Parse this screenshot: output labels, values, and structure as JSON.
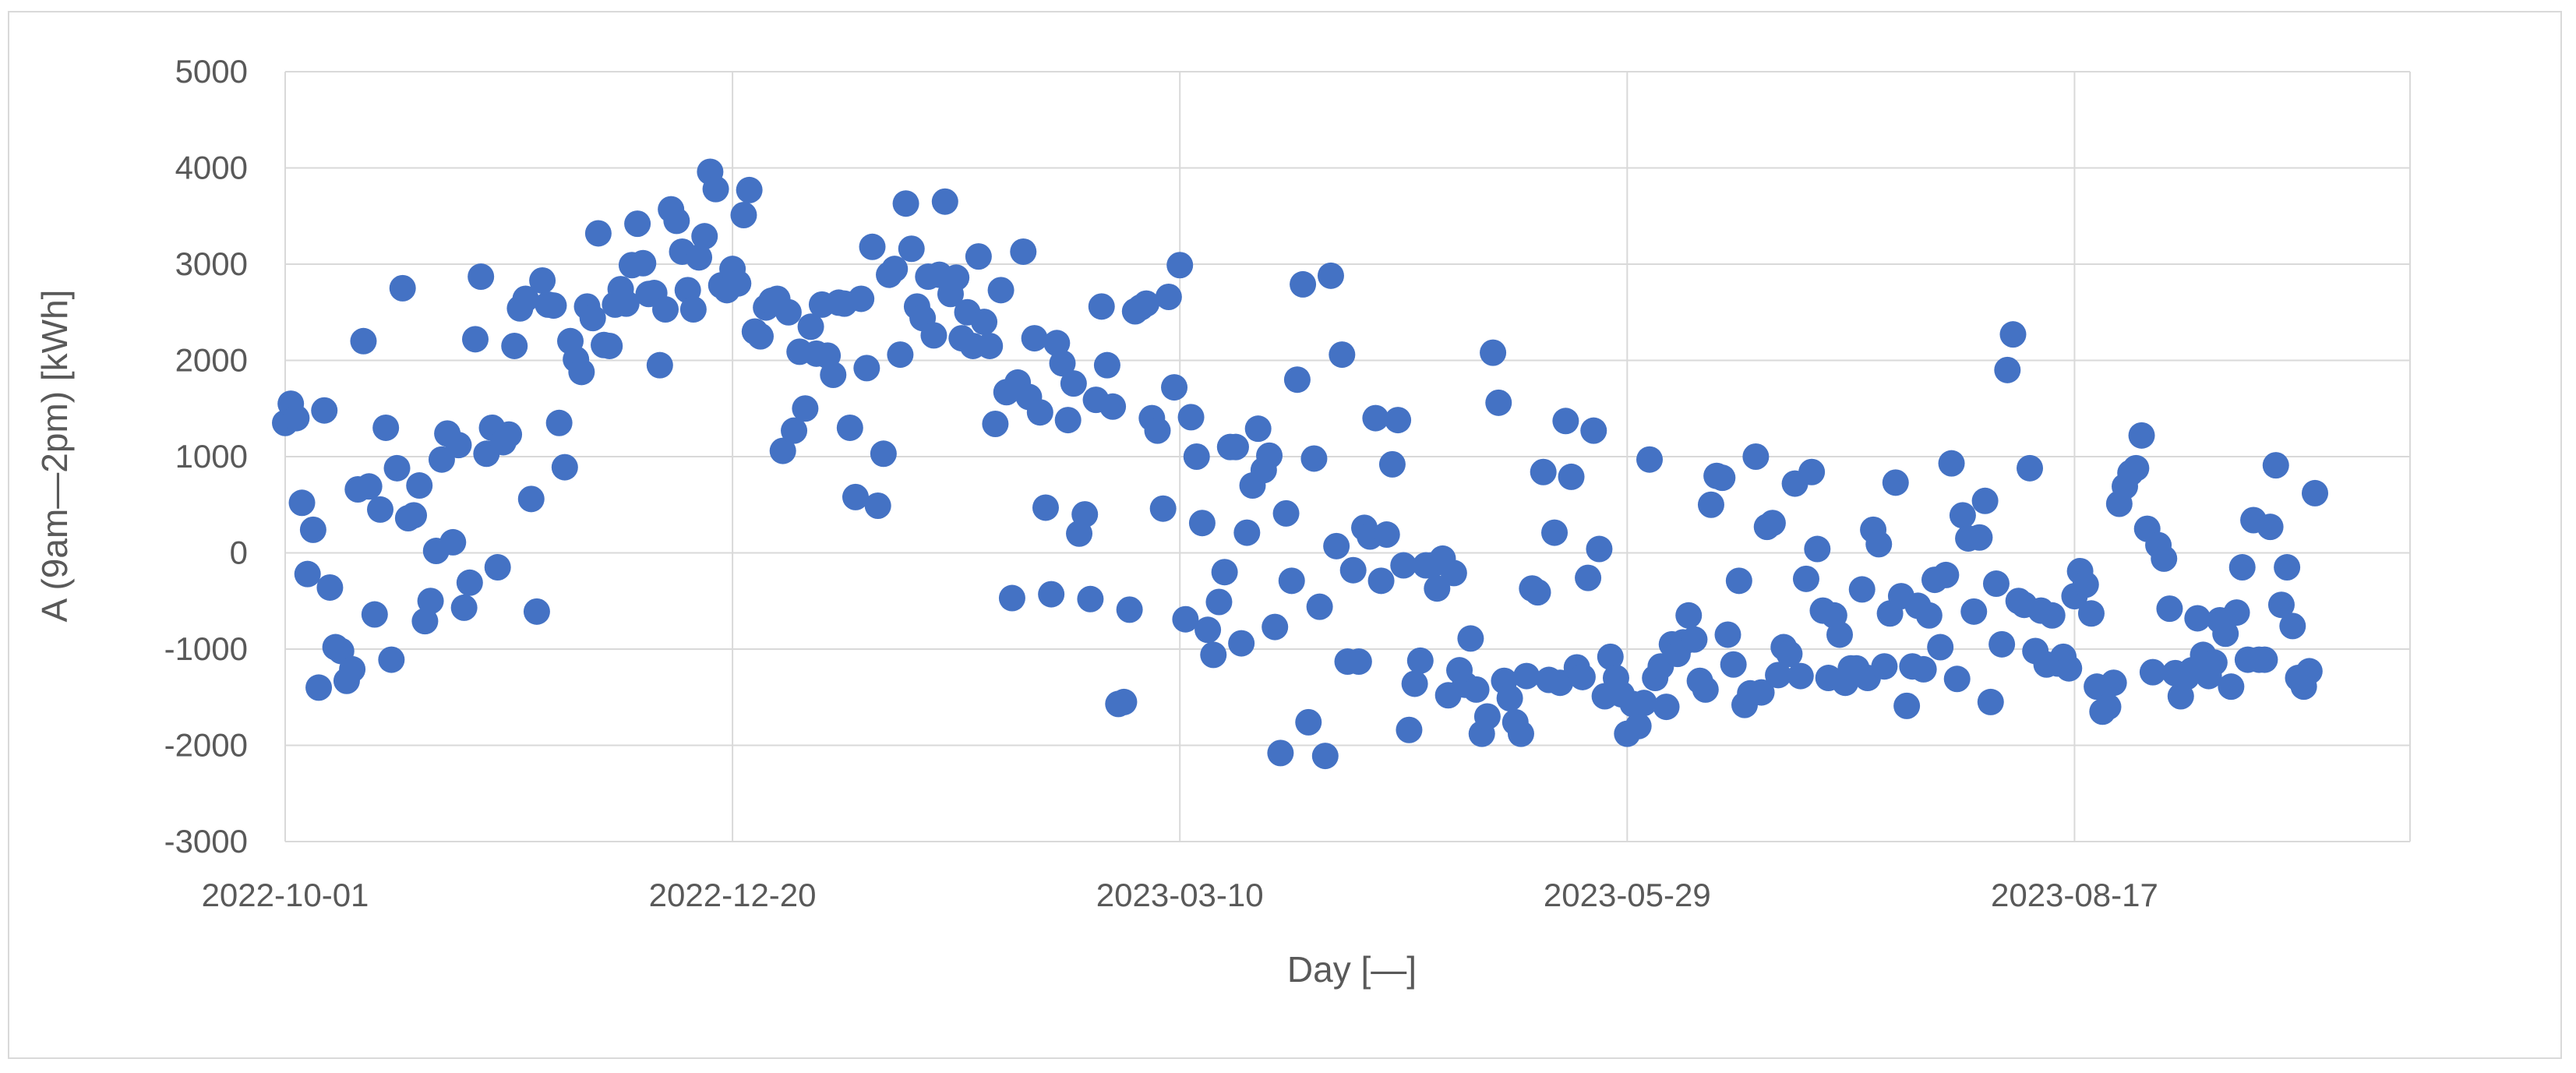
{
  "chart_data": {
    "type": "scatter",
    "xlabel": "Day [—]",
    "ylabel": "A (9am—2pm) [kWh]",
    "x_is_date": true,
    "xlim": [
      "2022-10-01",
      "2023-10-16"
    ],
    "ylim": [
      -3000,
      5000
    ],
    "y_ticks": [
      -3000,
      -2000,
      -1000,
      0,
      1000,
      2000,
      3000,
      4000,
      5000
    ],
    "x_ticks": [
      "2022-10-01",
      "2022-12-20",
      "2023-03-10",
      "2023-05-29",
      "2023-08-17"
    ],
    "grid": true,
    "legend": "none",
    "marker_color": "#4472c4",
    "points": [
      [
        "2022-10-01",
        1350
      ],
      [
        "2022-10-02",
        1550
      ],
      [
        "2022-10-03",
        1400
      ],
      [
        "2022-10-04",
        520
      ],
      [
        "2022-10-05",
        -220
      ],
      [
        "2022-10-06",
        240
      ],
      [
        "2022-10-07",
        -1400
      ],
      [
        "2022-10-08",
        1480
      ],
      [
        "2022-10-09",
        -360
      ],
      [
        "2022-10-10",
        -980
      ],
      [
        "2022-10-11",
        -1020
      ],
      [
        "2022-10-12",
        -1330
      ],
      [
        "2022-10-13",
        -1210
      ],
      [
        "2022-10-14",
        660
      ],
      [
        "2022-10-15",
        2200
      ],
      [
        "2022-10-16",
        690
      ],
      [
        "2022-10-17",
        -640
      ],
      [
        "2022-10-18",
        450
      ],
      [
        "2022-10-19",
        1300
      ],
      [
        "2022-10-20",
        -1110
      ],
      [
        "2022-10-21",
        880
      ],
      [
        "2022-10-22",
        2750
      ],
      [
        "2022-10-23",
        360
      ],
      [
        "2022-10-24",
        390
      ],
      [
        "2022-10-25",
        700
      ],
      [
        "2022-10-26",
        -710
      ],
      [
        "2022-10-27",
        -500
      ],
      [
        "2022-10-28",
        20
      ],
      [
        "2022-10-29",
        970
      ],
      [
        "2022-10-30",
        1240
      ],
      [
        "2022-10-31",
        110
      ],
      [
        "2022-11-01",
        1120
      ],
      [
        "2022-11-02",
        -570
      ],
      [
        "2022-11-03",
        -310
      ],
      [
        "2022-11-04",
        2220
      ],
      [
        "2022-11-05",
        2870
      ],
      [
        "2022-11-06",
        1030
      ],
      [
        "2022-11-07",
        1300
      ],
      [
        "2022-11-08",
        -150
      ],
      [
        "2022-11-09",
        1150
      ],
      [
        "2022-11-10",
        1230
      ],
      [
        "2022-11-11",
        2150
      ],
      [
        "2022-11-12",
        2540
      ],
      [
        "2022-11-13",
        2640
      ],
      [
        "2022-11-14",
        560
      ],
      [
        "2022-11-15",
        -610
      ],
      [
        "2022-11-16",
        2830
      ],
      [
        "2022-11-17",
        2580
      ],
      [
        "2022-11-18",
        2570
      ],
      [
        "2022-11-19",
        1350
      ],
      [
        "2022-11-20",
        890
      ],
      [
        "2022-11-21",
        2200
      ],
      [
        "2022-11-22",
        2010
      ],
      [
        "2022-11-23",
        1880
      ],
      [
        "2022-11-24",
        2560
      ],
      [
        "2022-11-25",
        2440
      ],
      [
        "2022-11-26",
        3320
      ],
      [
        "2022-11-27",
        2160
      ],
      [
        "2022-11-28",
        2150
      ],
      [
        "2022-11-29",
        2580
      ],
      [
        "2022-11-30",
        2740
      ],
      [
        "2022-12-01",
        2590
      ],
      [
        "2022-12-02",
        2990
      ],
      [
        "2022-12-03",
        3420
      ],
      [
        "2022-12-04",
        3010
      ],
      [
        "2022-12-05",
        2690
      ],
      [
        "2022-12-06",
        2700
      ],
      [
        "2022-12-07",
        1950
      ],
      [
        "2022-12-08",
        2530
      ],
      [
        "2022-12-09",
        3570
      ],
      [
        "2022-12-10",
        3450
      ],
      [
        "2022-12-11",
        3130
      ],
      [
        "2022-12-12",
        2730
      ],
      [
        "2022-12-13",
        2530
      ],
      [
        "2022-12-14",
        3070
      ],
      [
        "2022-12-15",
        3290
      ],
      [
        "2022-12-16",
        3960
      ],
      [
        "2022-12-17",
        3780
      ],
      [
        "2022-12-18",
        2780
      ],
      [
        "2022-12-19",
        2730
      ],
      [
        "2022-12-20",
        2950
      ],
      [
        "2022-12-21",
        2800
      ],
      [
        "2022-12-22",
        3510
      ],
      [
        "2022-12-23",
        3770
      ],
      [
        "2022-12-24",
        2300
      ],
      [
        "2022-12-25",
        2250
      ],
      [
        "2022-12-26",
        2550
      ],
      [
        "2022-12-27",
        2620
      ],
      [
        "2022-12-28",
        2640
      ],
      [
        "2022-12-29",
        1060
      ],
      [
        "2022-12-30",
        2500
      ],
      [
        "2022-12-31",
        1270
      ],
      [
        "2023-01-01",
        2090
      ],
      [
        "2023-01-02",
        1500
      ],
      [
        "2023-01-03",
        2350
      ],
      [
        "2023-01-04",
        2070
      ],
      [
        "2023-01-05",
        2580
      ],
      [
        "2023-01-06",
        2050
      ],
      [
        "2023-01-07",
        1850
      ],
      [
        "2023-01-08",
        2600
      ],
      [
        "2023-01-09",
        2590
      ],
      [
        "2023-01-10",
        1300
      ],
      [
        "2023-01-11",
        580
      ],
      [
        "2023-01-12",
        2640
      ],
      [
        "2023-01-13",
        1920
      ],
      [
        "2023-01-14",
        3180
      ],
      [
        "2023-01-15",
        490
      ],
      [
        "2023-01-16",
        1030
      ],
      [
        "2023-01-17",
        2890
      ],
      [
        "2023-01-18",
        2950
      ],
      [
        "2023-01-19",
        2060
      ],
      [
        "2023-01-20",
        3630
      ],
      [
        "2023-01-21",
        3160
      ],
      [
        "2023-01-22",
        2560
      ],
      [
        "2023-01-23",
        2440
      ],
      [
        "2023-01-24",
        2870
      ],
      [
        "2023-01-25",
        2260
      ],
      [
        "2023-01-26",
        2890
      ],
      [
        "2023-01-27",
        3650
      ],
      [
        "2023-01-28",
        2690
      ],
      [
        "2023-01-29",
        2860
      ],
      [
        "2023-01-30",
        2230
      ],
      [
        "2023-01-31",
        2500
      ],
      [
        "2023-02-01",
        2150
      ],
      [
        "2023-02-02",
        3080
      ],
      [
        "2023-02-03",
        2400
      ],
      [
        "2023-02-04",
        2150
      ],
      [
        "2023-02-05",
        1340
      ],
      [
        "2023-02-06",
        2730
      ],
      [
        "2023-02-07",
        1670
      ],
      [
        "2023-02-08",
        -470
      ],
      [
        "2023-02-09",
        1770
      ],
      [
        "2023-02-10",
        3130
      ],
      [
        "2023-02-11",
        1620
      ],
      [
        "2023-02-12",
        2230
      ],
      [
        "2023-02-13",
        1460
      ],
      [
        "2023-02-14",
        470
      ],
      [
        "2023-02-15",
        -430
      ],
      [
        "2023-02-16",
        2180
      ],
      [
        "2023-02-17",
        1970
      ],
      [
        "2023-02-18",
        1380
      ],
      [
        "2023-02-19",
        1760
      ],
      [
        "2023-02-20",
        200
      ],
      [
        "2023-02-21",
        400
      ],
      [
        "2023-02-22",
        -480
      ],
      [
        "2023-02-23",
        1590
      ],
      [
        "2023-02-24",
        2560
      ],
      [
        "2023-02-25",
        1950
      ],
      [
        "2023-02-26",
        1520
      ],
      [
        "2023-02-27",
        -1570
      ],
      [
        "2023-02-28",
        -1550
      ],
      [
        "2023-03-01",
        -590
      ],
      [
        "2023-03-02",
        2510
      ],
      [
        "2023-03-03",
        2550
      ],
      [
        "2023-03-04",
        2590
      ],
      [
        "2023-03-05",
        1400
      ],
      [
        "2023-03-06",
        1270
      ],
      [
        "2023-03-07",
        460
      ],
      [
        "2023-03-08",
        2660
      ],
      [
        "2023-03-09",
        1720
      ],
      [
        "2023-03-10",
        2990
      ],
      [
        "2023-03-11",
        -690
      ],
      [
        "2023-03-12",
        1410
      ],
      [
        "2023-03-13",
        1000
      ],
      [
        "2023-03-14",
        310
      ],
      [
        "2023-03-15",
        -800
      ],
      [
        "2023-03-16",
        -1060
      ],
      [
        "2023-03-17",
        -510
      ],
      [
        "2023-03-18",
        -200
      ],
      [
        "2023-03-19",
        1100
      ],
      [
        "2023-03-20",
        1100
      ],
      [
        "2023-03-21",
        -940
      ],
      [
        "2023-03-22",
        210
      ],
      [
        "2023-03-23",
        700
      ],
      [
        "2023-03-24",
        1290
      ],
      [
        "2023-03-25",
        860
      ],
      [
        "2023-03-26",
        1010
      ],
      [
        "2023-03-27",
        -770
      ],
      [
        "2023-03-28",
        -2080
      ],
      [
        "2023-03-29",
        410
      ],
      [
        "2023-03-30",
        -290
      ],
      [
        "2023-03-31",
        1800
      ],
      [
        "2023-04-01",
        2790
      ],
      [
        "2023-04-02",
        -1760
      ],
      [
        "2023-04-03",
        980
      ],
      [
        "2023-04-04",
        -560
      ],
      [
        "2023-04-05",
        -2110
      ],
      [
        "2023-04-06",
        2880
      ],
      [
        "2023-04-07",
        70
      ],
      [
        "2023-04-08",
        2060
      ],
      [
        "2023-04-09",
        -1130
      ],
      [
        "2023-04-10",
        -180
      ],
      [
        "2023-04-11",
        -1130
      ],
      [
        "2023-04-12",
        260
      ],
      [
        "2023-04-13",
        170
      ],
      [
        "2023-04-14",
        1400
      ],
      [
        "2023-04-15",
        -290
      ],
      [
        "2023-04-16",
        190
      ],
      [
        "2023-04-17",
        920
      ],
      [
        "2023-04-18",
        1380
      ],
      [
        "2023-04-19",
        -130
      ],
      [
        "2023-04-20",
        -1840
      ],
      [
        "2023-04-21",
        -1360
      ],
      [
        "2023-04-22",
        -1120
      ],
      [
        "2023-04-23",
        -130
      ],
      [
        "2023-04-24",
        -130
      ],
      [
        "2023-04-25",
        -370
      ],
      [
        "2023-04-26",
        -60
      ],
      [
        "2023-04-27",
        -1480
      ],
      [
        "2023-04-28",
        -210
      ],
      [
        "2023-04-29",
        -1220
      ],
      [
        "2023-04-30",
        -1370
      ],
      [
        "2023-05-01",
        -890
      ],
      [
        "2023-05-02",
        -1420
      ],
      [
        "2023-05-03",
        -1880
      ],
      [
        "2023-05-04",
        -1700
      ],
      [
        "2023-05-05",
        2080
      ],
      [
        "2023-05-06",
        1560
      ],
      [
        "2023-05-07",
        -1330
      ],
      [
        "2023-05-08",
        -1510
      ],
      [
        "2023-05-09",
        -1760
      ],
      [
        "2023-05-10",
        -1880
      ],
      [
        "2023-05-11",
        -1280
      ],
      [
        "2023-05-12",
        -370
      ],
      [
        "2023-05-13",
        -410
      ],
      [
        "2023-05-14",
        840
      ],
      [
        "2023-05-15",
        -1320
      ],
      [
        "2023-05-16",
        210
      ],
      [
        "2023-05-17",
        -1350
      ],
      [
        "2023-05-18",
        1370
      ],
      [
        "2023-05-19",
        790
      ],
      [
        "2023-05-20",
        -1190
      ],
      [
        "2023-05-21",
        -1290
      ],
      [
        "2023-05-22",
        -260
      ],
      [
        "2023-05-23",
        1270
      ],
      [
        "2023-05-24",
        40
      ],
      [
        "2023-05-25",
        -1490
      ],
      [
        "2023-05-26",
        -1080
      ],
      [
        "2023-05-27",
        -1300
      ],
      [
        "2023-05-28",
        -1470
      ],
      [
        "2023-05-29",
        -1880
      ],
      [
        "2023-05-30",
        -1570
      ],
      [
        "2023-05-31",
        -1800
      ],
      [
        "2023-06-01",
        -1560
      ],
      [
        "2023-06-02",
        970
      ],
      [
        "2023-06-03",
        -1300
      ],
      [
        "2023-06-04",
        -1180
      ],
      [
        "2023-06-05",
        -1600
      ],
      [
        "2023-06-06",
        -950
      ],
      [
        "2023-06-07",
        -1050
      ],
      [
        "2023-06-08",
        -930
      ],
      [
        "2023-06-09",
        -650
      ],
      [
        "2023-06-10",
        -900
      ],
      [
        "2023-06-11",
        -1330
      ],
      [
        "2023-06-12",
        -1420
      ],
      [
        "2023-06-13",
        500
      ],
      [
        "2023-06-14",
        800
      ],
      [
        "2023-06-15",
        780
      ],
      [
        "2023-06-16",
        -850
      ],
      [
        "2023-06-17",
        -1160
      ],
      [
        "2023-06-18",
        -290
      ],
      [
        "2023-06-19",
        -1580
      ],
      [
        "2023-06-20",
        -1460
      ],
      [
        "2023-06-21",
        1000
      ],
      [
        "2023-06-22",
        -1450
      ],
      [
        "2023-06-23",
        270
      ],
      [
        "2023-06-24",
        310
      ],
      [
        "2023-06-25",
        -1270
      ],
      [
        "2023-06-26",
        -980
      ],
      [
        "2023-06-27",
        -1050
      ],
      [
        "2023-06-28",
        720
      ],
      [
        "2023-06-29",
        -1280
      ],
      [
        "2023-06-30",
        -270
      ],
      [
        "2023-07-01",
        840
      ],
      [
        "2023-07-02",
        40
      ],
      [
        "2023-07-03",
        -600
      ],
      [
        "2023-07-04",
        -1300
      ],
      [
        "2023-07-05",
        -650
      ],
      [
        "2023-07-06",
        -850
      ],
      [
        "2023-07-07",
        -1350
      ],
      [
        "2023-07-08",
        -1200
      ],
      [
        "2023-07-09",
        -1200
      ],
      [
        "2023-07-10",
        -380
      ],
      [
        "2023-07-11",
        -1300
      ],
      [
        "2023-07-12",
        240
      ],
      [
        "2023-07-13",
        90
      ],
      [
        "2023-07-14",
        -1180
      ],
      [
        "2023-07-15",
        -630
      ],
      [
        "2023-07-16",
        730
      ],
      [
        "2023-07-17",
        -450
      ],
      [
        "2023-07-18",
        -1590
      ],
      [
        "2023-07-19",
        -1180
      ],
      [
        "2023-07-20",
        -550
      ],
      [
        "2023-07-21",
        -1210
      ],
      [
        "2023-07-22",
        -650
      ],
      [
        "2023-07-23",
        -280
      ],
      [
        "2023-07-24",
        -980
      ],
      [
        "2023-07-25",
        -230
      ],
      [
        "2023-07-26",
        930
      ],
      [
        "2023-07-27",
        -1310
      ],
      [
        "2023-07-28",
        390
      ],
      [
        "2023-07-29",
        150
      ],
      [
        "2023-07-30",
        -610
      ],
      [
        "2023-07-31",
        160
      ],
      [
        "2023-08-01",
        540
      ],
      [
        "2023-08-02",
        -1550
      ],
      [
        "2023-08-03",
        -320
      ],
      [
        "2023-08-04",
        -950
      ],
      [
        "2023-08-05",
        1900
      ],
      [
        "2023-08-06",
        2270
      ],
      [
        "2023-08-07",
        -500
      ],
      [
        "2023-08-08",
        -540
      ],
      [
        "2023-08-09",
        880
      ],
      [
        "2023-08-10",
        -1020
      ],
      [
        "2023-08-11",
        -600
      ],
      [
        "2023-08-12",
        -1160
      ],
      [
        "2023-08-13",
        -650
      ],
      [
        "2023-08-14",
        -1150
      ],
      [
        "2023-08-15",
        -1080
      ],
      [
        "2023-08-16",
        -1200
      ],
      [
        "2023-08-17",
        -450
      ],
      [
        "2023-08-18",
        -190
      ],
      [
        "2023-08-19",
        -330
      ],
      [
        "2023-08-20",
        -630
      ],
      [
        "2023-08-21",
        -1390
      ],
      [
        "2023-08-22",
        -1650
      ],
      [
        "2023-08-23",
        -1600
      ],
      [
        "2023-08-24",
        -1350
      ],
      [
        "2023-08-25",
        510
      ],
      [
        "2023-08-26",
        690
      ],
      [
        "2023-08-27",
        830
      ],
      [
        "2023-08-28",
        880
      ],
      [
        "2023-08-29",
        1220
      ],
      [
        "2023-08-30",
        250
      ],
      [
        "2023-08-31",
        -1240
      ],
      [
        "2023-09-01",
        80
      ],
      [
        "2023-09-02",
        -60
      ],
      [
        "2023-09-03",
        -580
      ],
      [
        "2023-09-04",
        -1250
      ],
      [
        "2023-09-05",
        -1490
      ],
      [
        "2023-09-06",
        -1290
      ],
      [
        "2023-09-07",
        -1220
      ],
      [
        "2023-09-08",
        -680
      ],
      [
        "2023-09-09",
        -1060
      ],
      [
        "2023-09-10",
        -1280
      ],
      [
        "2023-09-11",
        -1140
      ],
      [
        "2023-09-12",
        -700
      ],
      [
        "2023-09-13",
        -840
      ],
      [
        "2023-09-14",
        -1390
      ],
      [
        "2023-09-15",
        -620
      ],
      [
        "2023-09-16",
        -150
      ],
      [
        "2023-09-17",
        -1110
      ],
      [
        "2023-09-18",
        340
      ],
      [
        "2023-09-19",
        -1110
      ],
      [
        "2023-09-20",
        -1110
      ],
      [
        "2023-09-21",
        270
      ],
      [
        "2023-09-22",
        910
      ],
      [
        "2023-09-23",
        -540
      ],
      [
        "2023-09-24",
        -150
      ],
      [
        "2023-09-25",
        -760
      ],
      [
        "2023-09-26",
        -1300
      ],
      [
        "2023-09-27",
        -1390
      ],
      [
        "2023-09-28",
        -1230
      ],
      [
        "2023-09-29",
        620
      ]
    ]
  }
}
